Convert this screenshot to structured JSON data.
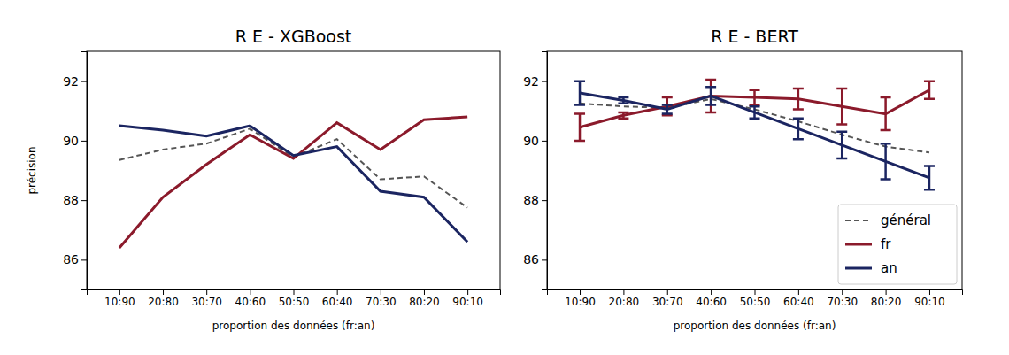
{
  "chart_data": [
    {
      "type": "line",
      "title": "R E - XGBoost",
      "xlabel": "proportion des données (fr:an)",
      "ylabel": "précision",
      "categories": [
        "10:90",
        "20:80",
        "30:70",
        "40:60",
        "50:50",
        "60:40",
        "70:30",
        "80:20",
        "90:10"
      ],
      "ylim": [
        85,
        93
      ],
      "yticks": [
        86,
        88,
        90,
        92
      ],
      "grid": false,
      "series": [
        {
          "name": "général",
          "color": "#555555",
          "line_style": "dashed",
          "values": [
            89.35,
            89.7,
            89.9,
            90.4,
            89.45,
            90.05,
            88.7,
            88.8,
            87.75
          ]
        },
        {
          "name": "fr",
          "color": "#8b1a2b",
          "line_style": "solid",
          "values": [
            86.4,
            88.1,
            89.2,
            90.2,
            89.4,
            90.6,
            89.7,
            90.7,
            90.8
          ]
        },
        {
          "name": "an",
          "color": "#1b2561",
          "line_style": "solid",
          "values": [
            90.5,
            90.35,
            90.15,
            90.5,
            89.5,
            89.8,
            88.3,
            88.1,
            86.6
          ]
        }
      ]
    },
    {
      "type": "line",
      "title": "R E - BERT",
      "xlabel": "proportion des données (fr:an)",
      "categories": [
        "10:90",
        "20:80",
        "30:70",
        "40:60",
        "50:50",
        "60:40",
        "70:30",
        "80:20",
        "90:10"
      ],
      "ylim": [
        85,
        93
      ],
      "yticks": [
        86,
        88,
        90,
        92
      ],
      "grid": false,
      "legend": "lower right",
      "series": [
        {
          "name": "général",
          "color": "#555555",
          "line_style": "dashed",
          "values": [
            91.25,
            91.15,
            91.1,
            91.4,
            91.05,
            90.65,
            90.2,
            89.8,
            89.6
          ]
        },
        {
          "name": "fr",
          "color": "#8b1a2b",
          "line_style": "solid",
          "values": [
            90.45,
            90.85,
            91.15,
            91.5,
            91.45,
            91.4,
            91.15,
            90.9,
            91.7
          ],
          "errors": [
            0.45,
            0.1,
            0.3,
            0.55,
            0.25,
            0.35,
            0.6,
            0.55,
            0.3
          ]
        },
        {
          "name": "an",
          "color": "#1b2561",
          "line_style": "solid",
          "values": [
            91.6,
            91.35,
            91.05,
            91.5,
            90.95,
            90.4,
            89.85,
            89.3,
            88.75
          ],
          "errors": [
            0.4,
            0.1,
            0.15,
            0.3,
            0.2,
            0.35,
            0.45,
            0.6,
            0.4
          ]
        }
      ]
    }
  ]
}
